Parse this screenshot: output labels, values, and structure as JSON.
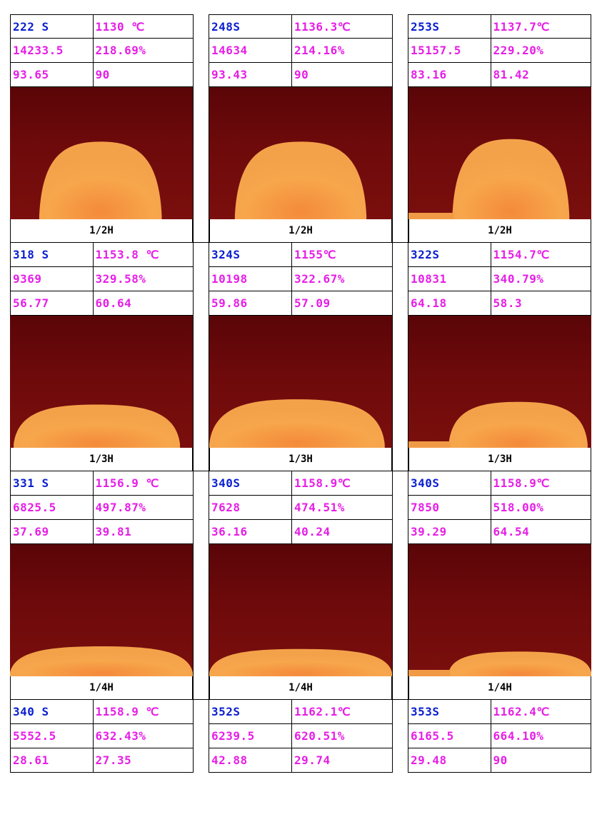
{
  "groups": [
    {
      "caption": [
        "1/2H",
        "1/2H",
        "1/2H"
      ],
      "cols": [
        {
          "time": "222 S",
          "temp": "1130 ℃",
          "area": "14233.5",
          "pct": "218.69%",
          "a1": "93.65",
          "a2": "90",
          "drop_height": 0.56,
          "drop_left": 0.16,
          "drop_right": 0.83,
          "ledge": false
        },
        {
          "time": "248S",
          "temp": "1136.3℃",
          "area": "14634",
          "pct": "214.16%",
          "a1": "93.43",
          "a2": "90",
          "drop_height": 0.56,
          "drop_left": 0.14,
          "drop_right": 0.86,
          "ledge": false
        },
        {
          "time": "253S",
          "temp": "1137.7℃",
          "area": "15157.5",
          "pct": "229.20%",
          "a1": "83.16",
          "a2": "81.42",
          "drop_height": 0.58,
          "drop_left": 0.24,
          "drop_right": 0.88,
          "ledge": true
        }
      ]
    },
    {
      "caption": [
        "1/3H",
        "1/3H",
        "1/3H"
      ],
      "cols": [
        {
          "time": "318 S",
          "temp": "1153.8 ℃",
          "area": "9369",
          "pct": "329.58%",
          "a1": "56.77",
          "a2": "60.64",
          "drop_height": 0.3,
          "drop_left": 0.02,
          "drop_right": 0.93,
          "ledge": false
        },
        {
          "time": "324S",
          "temp": "1155℃",
          "area": "10198",
          "pct": "322.67%",
          "a1": "59.86",
          "a2": "57.09",
          "drop_height": 0.34,
          "drop_left": 0.0,
          "drop_right": 0.96,
          "ledge": false
        },
        {
          "time": "322S",
          "temp": "1154.7℃",
          "area": "10831",
          "pct": "340.79%",
          "a1": "64.18",
          "a2": "58.3",
          "drop_height": 0.32,
          "drop_left": 0.22,
          "drop_right": 0.98,
          "ledge": true
        }
      ]
    },
    {
      "caption": [
        "1/4H",
        "1/4H",
        "1/4H"
      ],
      "cols": [
        {
          "time": "331 S",
          "temp": "1156.9 ℃",
          "area": "6825.5",
          "pct": "497.87%",
          "a1": "37.69",
          "a2": "39.81",
          "drop_height": 0.2,
          "drop_left": 0.0,
          "drop_right": 1.0,
          "ledge": false
        },
        {
          "time": "340S",
          "temp": "1158.9℃",
          "area": "7628",
          "pct": "474.51%",
          "a1": "36.16",
          "a2": "40.24",
          "drop_height": 0.18,
          "drop_left": 0.0,
          "drop_right": 1.0,
          "ledge": false
        },
        {
          "time": "340S",
          "temp": "1158.9℃",
          "area": "7850",
          "pct": "518.00%",
          "a1": "39.29",
          "a2": "64.54",
          "drop_height": 0.16,
          "drop_left": 0.22,
          "drop_right": 1.0,
          "ledge": true
        }
      ]
    }
  ],
  "final": [
    {
      "time": "340 S",
      "temp": "1158.9 ℃",
      "area": "5552.5",
      "pct": "632.43%",
      "a1": "28.61",
      "a2": "27.35"
    },
    {
      "time": "352S",
      "temp": "1162.1℃",
      "area": "6239.5",
      "pct": "620.51%",
      "a1": "42.88",
      "a2": "29.74"
    },
    {
      "time": "353S",
      "temp": "1162.4℃",
      "area": "6165.5",
      "pct": "664.10%",
      "a1": "29.48",
      "a2": "90"
    }
  ],
  "colors": {
    "time": "#0a1fd0",
    "values": "#e61ee6",
    "background": "#6e0a0b",
    "drop": "#f6a24a"
  }
}
